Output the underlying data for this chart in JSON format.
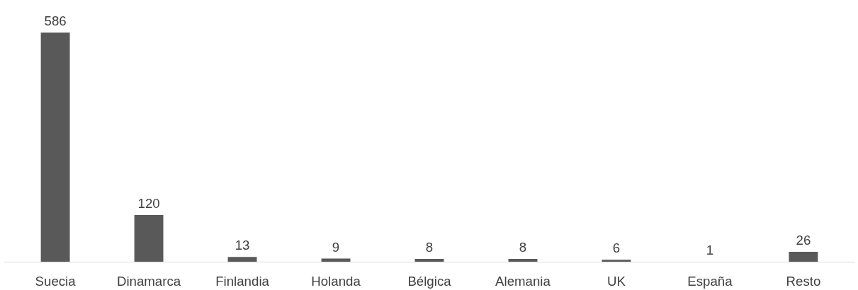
{
  "chart_data": {
    "type": "bar",
    "categories": [
      "Suecia",
      "Dinamarca",
      "Finlandia",
      "Holanda",
      "Bélgica",
      "Alemania",
      "UK",
      "España",
      "Resto"
    ],
    "values": [
      586,
      120,
      13,
      9,
      8,
      8,
      6,
      1,
      26
    ],
    "color": "#595959",
    "data_labels": true
  }
}
